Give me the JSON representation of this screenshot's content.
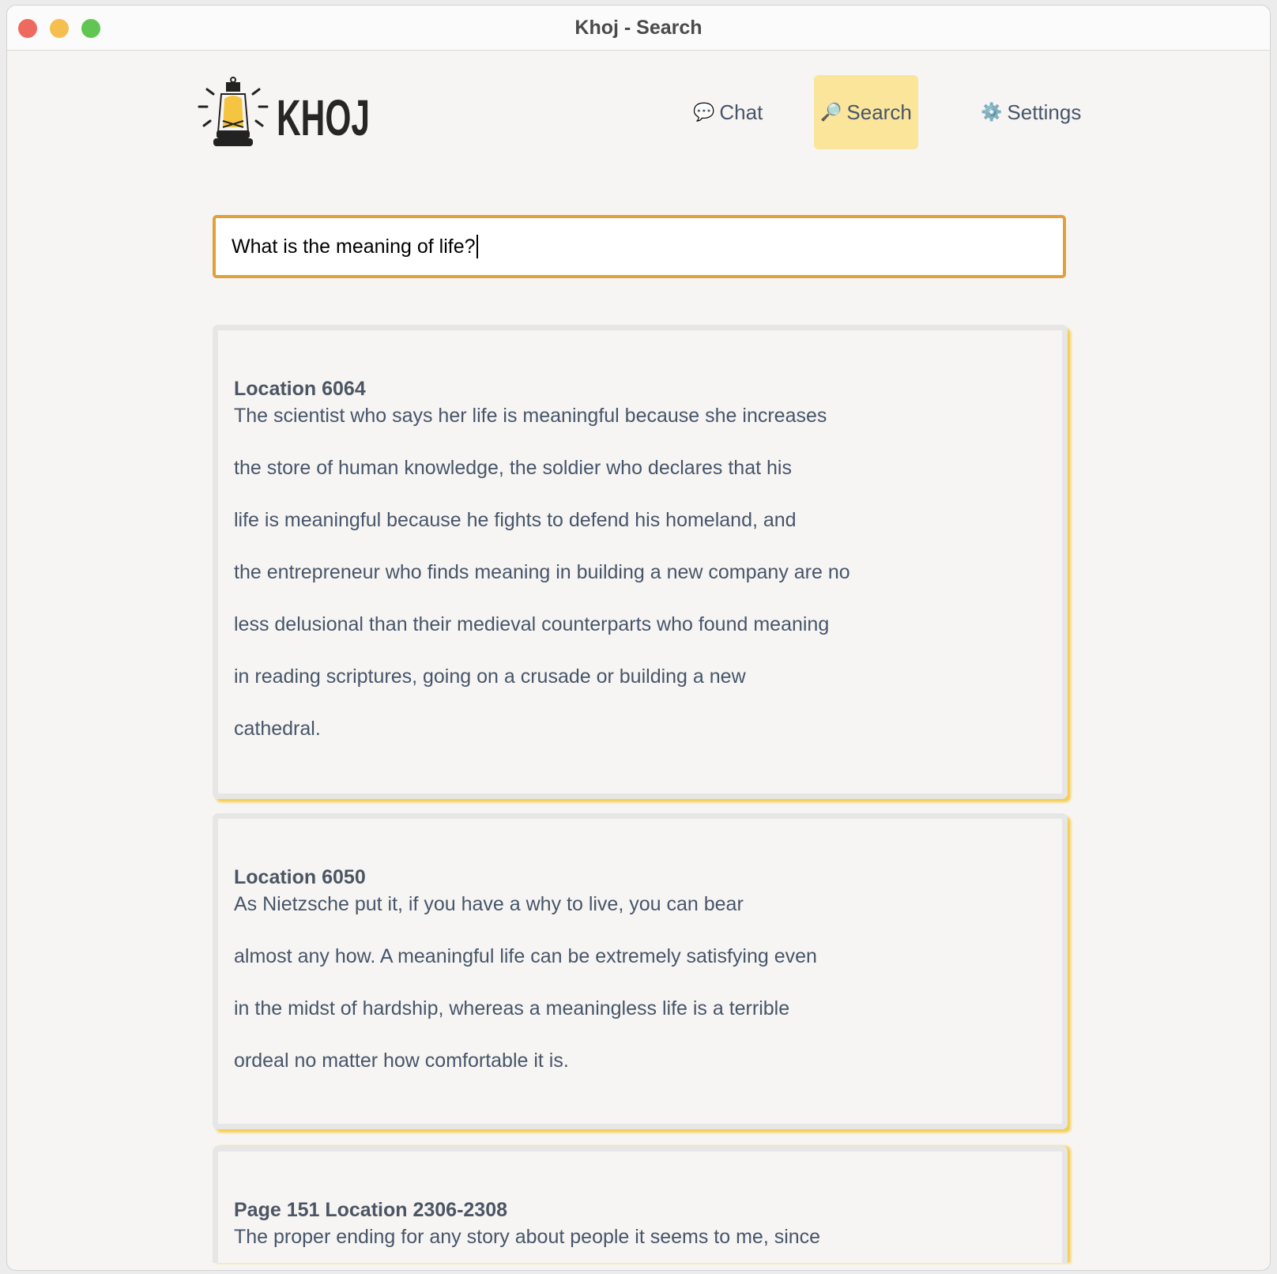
{
  "window": {
    "title": "Khoj - Search"
  },
  "logo": {
    "text": "KHOJ"
  },
  "nav": [
    {
      "label": "Chat",
      "icon": "speech-bubble-icon",
      "active": false
    },
    {
      "label": "Search",
      "icon": "magnifier-icon",
      "active": true
    },
    {
      "label": "Settings",
      "icon": "gear-icon",
      "active": false
    }
  ],
  "search": {
    "value": "What is the meaning of life?"
  },
  "colors": {
    "accent": "#e0a13c",
    "active_nav": "#fae59b",
    "card_shadow": "#f5cd4f"
  },
  "results": [
    {
      "heading": "Location 6064",
      "lines": [
        "The scientist who says her life is meaningful because she increases",
        "the store of human knowledge, the soldier who declares that his",
        "life is meaningful because he fights to defend his homeland, and",
        "the entrepreneur who finds meaning in building a new company are no",
        "less delusional than their medieval counterparts who found meaning",
        "in reading scriptures, going on a crusade or building a new",
        "cathedral."
      ]
    },
    {
      "heading": "Location 6050",
      "lines": [
        "As Nietzsche put it, if you have a why to live, you can bear",
        "almost any how. A meaningful life can be extremely satisfying even",
        "in the midst of hardship, whereas a meaningless life is a terrible",
        "ordeal no matter how comfortable it is."
      ]
    },
    {
      "heading": "Page 151 Location 2306-2308",
      "lines": [
        "The proper ending for any story about people it seems to me, since"
      ]
    }
  ]
}
